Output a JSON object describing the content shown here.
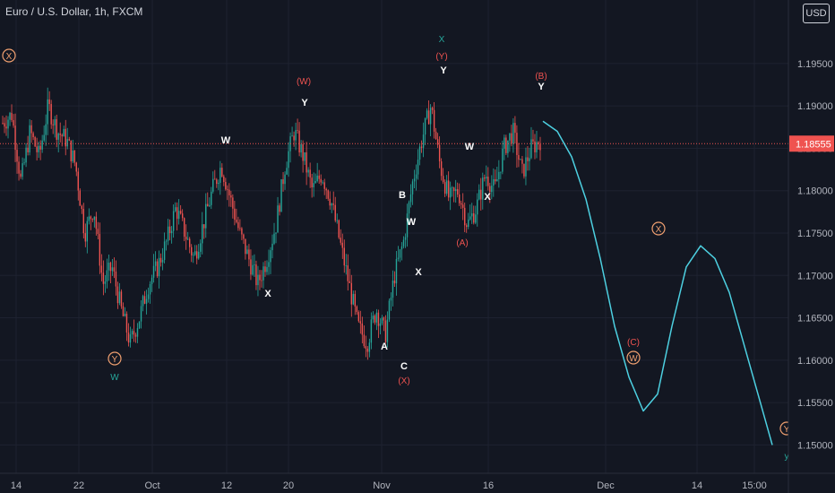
{
  "header": {
    "title": "Euro / U.S. Dollar, 1h, FXCM",
    "currency": "USD"
  },
  "colors": {
    "background": "#131722",
    "candle_up": "#26a69a",
    "candle_down": "#ef5350",
    "projection": "#4dd0e1",
    "price_line": "#ef5350",
    "label_white": "#ffffff",
    "label_red": "#ef5350",
    "label_green": "#26a69a",
    "circle_label": "#f0a070"
  },
  "chart_data": {
    "type": "candlestick",
    "title": "Euro / U.S. Dollar, 1h, FXCM",
    "ylim": [
      1.1475,
      1.2025
    ],
    "y_ticks": [
      "1.15000",
      "1.15500",
      "1.16000",
      "1.16500",
      "1.17000",
      "1.17500",
      "1.18000",
      "1.18500",
      "1.19000",
      "1.19500"
    ],
    "x_ticks": [
      "14",
      "22",
      "Oct",
      "12",
      "20",
      "Nov",
      "16",
      "Dec",
      "14",
      "15:00"
    ],
    "current_price": "1.18555",
    "price_path": [
      [
        1.188,
        1.189
      ],
      [
        1.181,
        1.187
      ],
      [
        1.184,
        1.19
      ],
      [
        1.187,
        1.186
      ],
      [
        1.183,
        1.175
      ],
      [
        1.178,
        1.169
      ],
      [
        1.171,
        1.166
      ],
      [
        1.162,
        1.165
      ],
      [
        1.169,
        1.171
      ],
      [
        1.174,
        1.178
      ],
      [
        1.175,
        1.172
      ],
      [
        1.176,
        1.18
      ],
      [
        1.183,
        1.179
      ],
      [
        1.175,
        1.172
      ],
      [
        1.169,
        1.172
      ],
      [
        1.176,
        1.183
      ],
      [
        1.187,
        1.184
      ],
      [
        1.18,
        1.182
      ],
      [
        1.179,
        1.174
      ],
      [
        1.169,
        1.164
      ],
      [
        1.162,
        1.166
      ],
      [
        1.163,
        1.17
      ],
      [
        1.174,
        1.181
      ],
      [
        1.186,
        1.19
      ],
      [
        1.183,
        1.179
      ],
      [
        1.18,
        1.176
      ],
      [
        1.178,
        1.182
      ],
      [
        1.18,
        1.185
      ],
      [
        1.187,
        1.182
      ],
      [
        1.185,
        1.186
      ]
    ],
    "projection": [
      [
        1.1882,
        1.187,
        1.184,
        1.179,
        1.172,
        1.164,
        1.158,
        1.154,
        1.156,
        1.164,
        1.171,
        1.1735,
        1.172,
        1.168,
        1.162,
        1.156,
        1.15
      ]
    ],
    "annotations": [
      {
        "text": "X",
        "style": "circle"
      },
      {
        "text": "Y",
        "style": "circle"
      },
      {
        "text": "W",
        "style": "green"
      },
      {
        "text": "W",
        "style": "white"
      },
      {
        "text": "X",
        "style": "white"
      },
      {
        "text": "(W)",
        "style": "red"
      },
      {
        "text": "Y",
        "style": "white"
      },
      {
        "text": "X",
        "style": "green"
      },
      {
        "text": "(Y)",
        "style": "red"
      },
      {
        "text": "Y",
        "style": "white"
      },
      {
        "text": "B",
        "style": "white"
      },
      {
        "text": "W",
        "style": "white"
      },
      {
        "text": "X",
        "style": "white"
      },
      {
        "text": "A",
        "style": "white"
      },
      {
        "text": "C",
        "style": "white"
      },
      {
        "text": "(X)",
        "style": "red"
      },
      {
        "text": "W",
        "style": "white"
      },
      {
        "text": "X",
        "style": "white"
      },
      {
        "text": "(A)",
        "style": "red"
      },
      {
        "text": "(B)",
        "style": "red"
      },
      {
        "text": "Y",
        "style": "white"
      },
      {
        "text": "X",
        "style": "circle"
      },
      {
        "text": "(C)",
        "style": "red"
      },
      {
        "text": "W",
        "style": "circle"
      },
      {
        "text": "Y",
        "style": "circle"
      },
      {
        "text": "y",
        "style": "green"
      }
    ]
  }
}
